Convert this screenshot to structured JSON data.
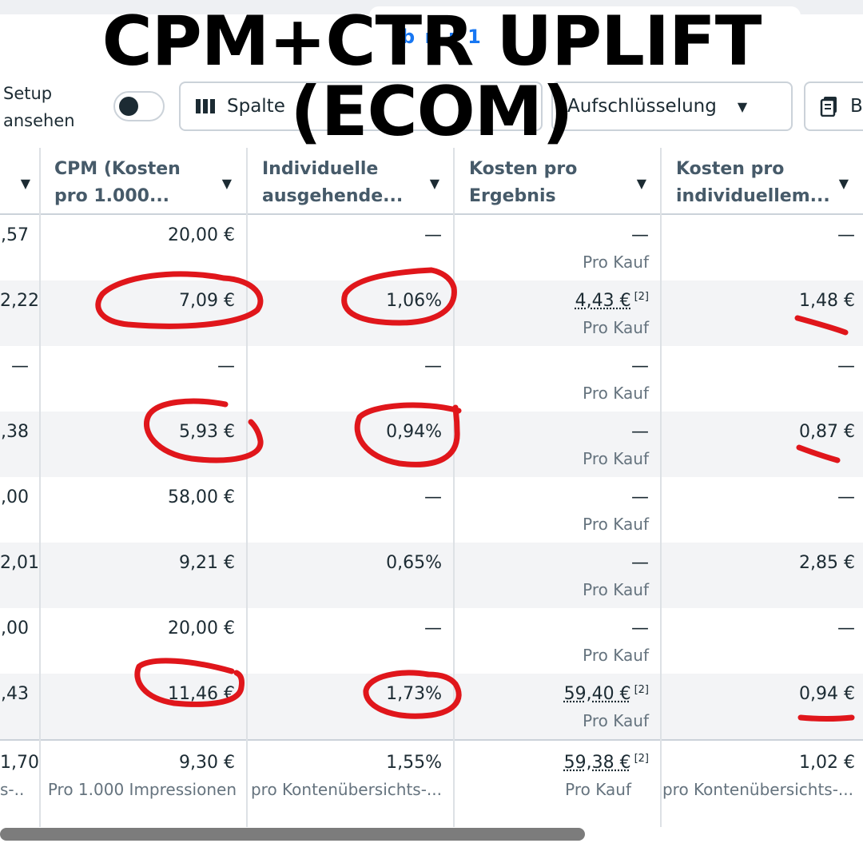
{
  "headline": {
    "line1": "CPM+CTR UPLIFT",
    "line2": "(ECOM)"
  },
  "toolbar": {
    "banner_text": "b n   r 1",
    "setup_label_1": "Setup",
    "setup_label_2": "ansehen",
    "columns_button": "Spalte",
    "breakdown_button": "Aufschlüsselung",
    "reports_button": "B"
  },
  "columns": [
    {
      "line1": "CPM (Kosten",
      "line2": "pro 1.000..."
    },
    {
      "line1": "Individuelle",
      "line2": "ausgehende..."
    },
    {
      "line1": "Kosten pro",
      "line2": "Ergebnis"
    },
    {
      "line1": "Kosten pro",
      "line2": "individuellem..."
    }
  ],
  "rows": [
    {
      "c0": ",57",
      "cpm": "20,00 €",
      "ctr": "—",
      "cpr": "—",
      "cpr_sub": "Pro Kauf",
      "cpu": "—"
    },
    {
      "c0": "2,22",
      "cpm": "7,09 €",
      "ctr": "1,06%",
      "cpr": "4,43 €",
      "cpr_ref": "[2]",
      "cpr_sub": "Pro Kauf",
      "cpu": "1,48 €"
    },
    {
      "c0": "—",
      "cpm": "—",
      "ctr": "—",
      "cpr": "—",
      "cpr_sub": "Pro Kauf",
      "cpu": "—"
    },
    {
      "c0": ",38",
      "cpm": "5,93 €",
      "ctr": "0,94%",
      "cpr": "—",
      "cpr_sub": "Pro Kauf",
      "cpu": "0,87 €"
    },
    {
      "c0": ",00",
      "cpm": "58,00 €",
      "ctr": "—",
      "cpr": "—",
      "cpr_sub": "Pro Kauf",
      "cpu": "—"
    },
    {
      "c0": "2,01",
      "cpm": "9,21 €",
      "ctr": "0,65%",
      "cpr": "—",
      "cpr_sub": "Pro Kauf",
      "cpu": "2,85 €"
    },
    {
      "c0": ",00",
      "cpm": "20,00 €",
      "ctr": "—",
      "cpr": "—",
      "cpr_sub": "Pro Kauf",
      "cpu": "—"
    },
    {
      "c0": ",43",
      "cpm": "11,46 €",
      "ctr": "1,73%",
      "cpr": "59,40 €",
      "cpr_ref": "[2]",
      "cpr_sub": "Pro Kauf",
      "cpu": "0,94 €"
    }
  ],
  "totals": {
    "c0": "1,70",
    "c0_sub": "s-...",
    "cpm": "9,30 €",
    "cpm_sub": "Pro 1.000 Impressionen",
    "ctr": "1,55%",
    "ctr_sub": "pro Kontenübersichts-...",
    "cpr": "59,38 €",
    "cpr_ref": "[2]",
    "cpr_sub": "Pro Kauf",
    "cpu": "1,02 €",
    "cpu_sub": "pro Kontenübersichts-..."
  },
  "colors": {
    "annotation": "#e0161b",
    "accent": "#1877f2"
  }
}
